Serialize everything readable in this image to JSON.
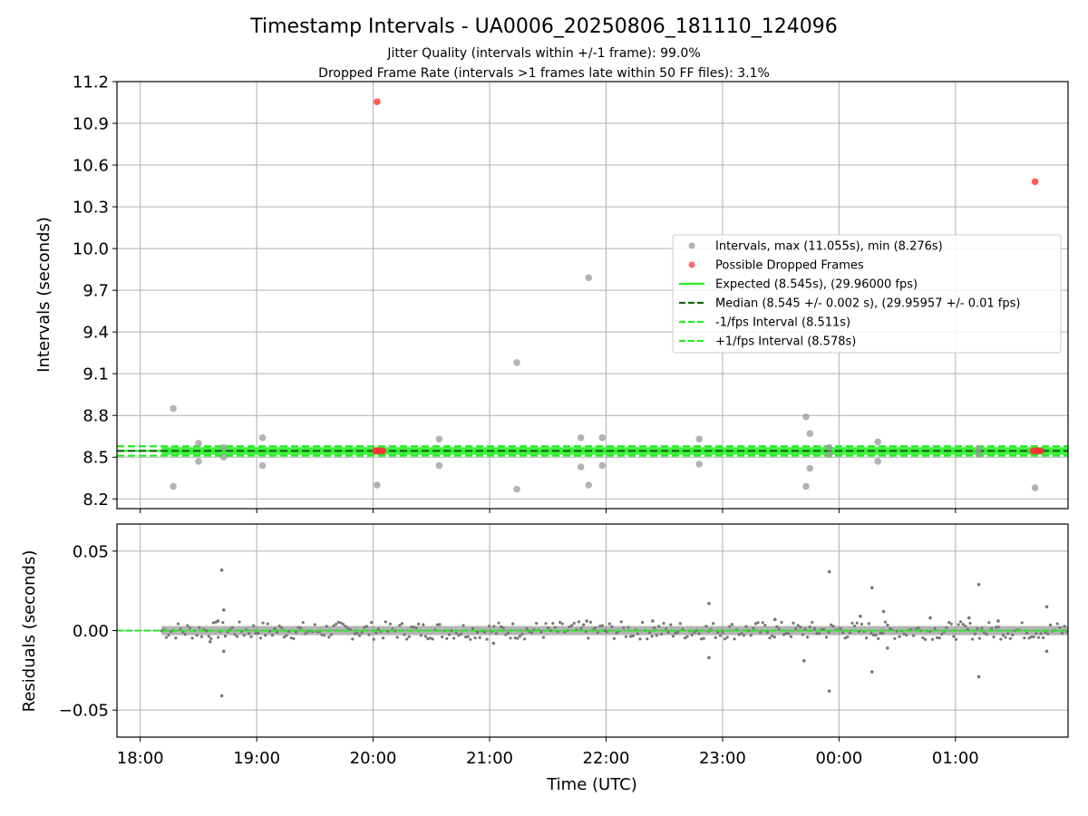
{
  "title": "Timestamp Intervals - UA0006_20250806_181110_124096",
  "subtitle_jitter": "Jitter Quality (intervals within +/-1 frame): 99.0%",
  "subtitle_dropped": "Dropped Frame Rate (intervals >1 frames late within 50 FF files): 3.1%",
  "colors": {
    "interval": "#999999",
    "dropped": "#ff3333",
    "expected": "#22ee22",
    "median": "#116611",
    "fps_band": "#22ee22",
    "residual": "#777777",
    "grid": "#b0b0b0"
  },
  "chart_data": [
    {
      "type": "scatter",
      "name": "intervals",
      "ylabel": "Intervals (seconds)",
      "y_range": [
        8.13,
        11.2
      ],
      "y_ticks": [
        "8.2",
        "8.5",
        "8.8",
        "9.1",
        "9.4",
        "9.7",
        "10.0",
        "10.3",
        "10.6",
        "10.9",
        "11.2"
      ],
      "grid": true,
      "legend_position": "center-right",
      "x_axis": {
        "unit": "UTC hours",
        "start": "17:48",
        "end": "01:58",
        "ticks": [
          "18:00",
          "19:00",
          "20:00",
          "21:00",
          "22:00",
          "23:00",
          "00:00",
          "01:00"
        ]
      },
      "reference_lines": {
        "expected": 8.545,
        "median": 8.545,
        "minus_1_fps": 8.511,
        "plus_1_fps": 8.578
      },
      "series": [
        {
          "name": "Intervals, max (11.055s), min (8.276s)",
          "points": [
            [
              "18:17",
              8.85
            ],
            [
              "18:17",
              8.29
            ],
            [
              "18:30",
              8.6
            ],
            [
              "18:30",
              8.47
            ],
            [
              "18:43",
              8.57
            ],
            [
              "18:43",
              8.5
            ],
            [
              "19:03",
              8.64
            ],
            [
              "19:03",
              8.44
            ],
            [
              "20:02",
              8.3
            ],
            [
              "20:34",
              8.63
            ],
            [
              "20:34",
              8.44
            ],
            [
              "21:14",
              9.18
            ],
            [
              "21:14",
              8.27
            ],
            [
              "21:47",
              8.64
            ],
            [
              "21:47",
              8.43
            ],
            [
              "21:51",
              9.79
            ],
            [
              "21:51",
              8.3
            ],
            [
              "21:58",
              8.64
            ],
            [
              "21:58",
              8.44
            ],
            [
              "22:48",
              8.63
            ],
            [
              "22:48",
              8.45
            ],
            [
              "23:43",
              8.79
            ],
            [
              "23:43",
              8.29
            ],
            [
              "23:45",
              8.67
            ],
            [
              "23:45",
              8.42
            ],
            [
              "23:55",
              8.57
            ],
            [
              "23:55",
              8.52
            ],
            [
              "00:20",
              8.61
            ],
            [
              "00:20",
              8.47
            ],
            [
              "01:12",
              8.56
            ],
            [
              "01:12",
              8.52
            ],
            [
              "01:41",
              8.28
            ]
          ]
        },
        {
          "name": "Possible Dropped Frames",
          "points": [
            [
              "20:02",
              11.055
            ],
            [
              "20:01",
              8.545
            ],
            [
              "20:02",
              8.545
            ],
            [
              "20:03",
              8.545
            ],
            [
              "20:04",
              8.545
            ],
            [
              "20:05",
              8.545
            ],
            [
              "01:41",
              10.48
            ],
            [
              "01:40",
              8.545
            ],
            [
              "01:41",
              8.545
            ],
            [
              "01:42",
              8.545
            ],
            [
              "01:43",
              8.545
            ],
            [
              "01:44",
              8.545
            ]
          ]
        },
        {
          "name": "Expected (8.545s), (29.96000 fps)",
          "line": "solid"
        },
        {
          "name": "Median (8.545 +/- 0.002 s), (29.95957 +/- 0.01 fps)",
          "line": "dashed"
        },
        {
          "name": "-1/fps Interval (8.511s)",
          "line": "dashed"
        },
        {
          "name": "+1/fps Interval (8.578s)",
          "line": "dashed"
        }
      ]
    },
    {
      "type": "scatter",
      "name": "residuals",
      "xlabel": "Time (UTC)",
      "ylabel": "Residuals (seconds)",
      "y_range": [
        -0.067,
        0.067
      ],
      "y_ticks": [
        "0.05",
        "0.00",
        "−0.05"
      ],
      "y_tick_values": [
        0.05,
        0.0,
        -0.05
      ],
      "grid": true,
      "baseline": 0.0,
      "noise_band": 0.004,
      "series": [
        {
          "name": "residual outliers",
          "points": [
            [
              "18:42",
              0.038
            ],
            [
              "18:43",
              0.013
            ],
            [
              "18:43",
              -0.013
            ],
            [
              "18:42",
              -0.041
            ],
            [
              "18:40",
              0.006
            ],
            [
              "18:36",
              -0.007
            ],
            [
              "22:53",
              0.017
            ],
            [
              "22:53",
              -0.017
            ],
            [
              "23:42",
              -0.019
            ],
            [
              "23:55",
              0.037
            ],
            [
              "23:55",
              -0.038
            ],
            [
              "00:11",
              0.009
            ],
            [
              "00:17",
              0.027
            ],
            [
              "00:17",
              -0.026
            ],
            [
              "00:23",
              0.012
            ],
            [
              "00:25",
              -0.011
            ],
            [
              "00:47",
              0.008
            ],
            [
              "01:07",
              0.008
            ],
            [
              "01:12",
              0.029
            ],
            [
              "01:12",
              -0.029
            ],
            [
              "01:47",
              0.015
            ],
            [
              "01:47",
              -0.013
            ],
            [
              "21:02",
              -0.008
            ],
            [
              "21:50",
              0.006
            ],
            [
              "22:24",
              0.006
            ],
            [
              "23:27",
              0.007
            ],
            [
              "01:22",
              0.006
            ]
          ]
        }
      ]
    }
  ]
}
